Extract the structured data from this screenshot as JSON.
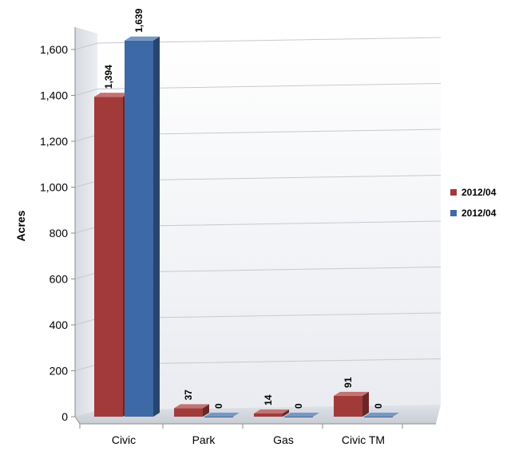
{
  "chart_data": {
    "type": "bar",
    "title": "",
    "xlabel": "",
    "ylabel": "Acres",
    "categories": [
      "Civic",
      "Park",
      "Gas",
      "Civic TM"
    ],
    "series": [
      {
        "name": "2012/04",
        "color": "#a33a3a",
        "values": [
          1394,
          37,
          14,
          91
        ],
        "labels": [
          "1,394",
          "37",
          "14",
          "91"
        ]
      },
      {
        "name": "2012/04",
        "color": "#3d6aa6",
        "values": [
          1639,
          0,
          0,
          0
        ],
        "labels": [
          "1,639",
          "0",
          "0",
          "0"
        ]
      }
    ],
    "ylim": [
      0,
      1600
    ],
    "yticks": [
      0,
      200,
      400,
      600,
      800,
      1000,
      1200,
      1400,
      1600
    ],
    "ytick_labels": [
      "0",
      "200",
      "400",
      "600",
      "800",
      "1,000",
      "1,200",
      "1,400",
      "1,600"
    ],
    "grid": true,
    "legend": "right",
    "style": "3d-clustered-column"
  }
}
